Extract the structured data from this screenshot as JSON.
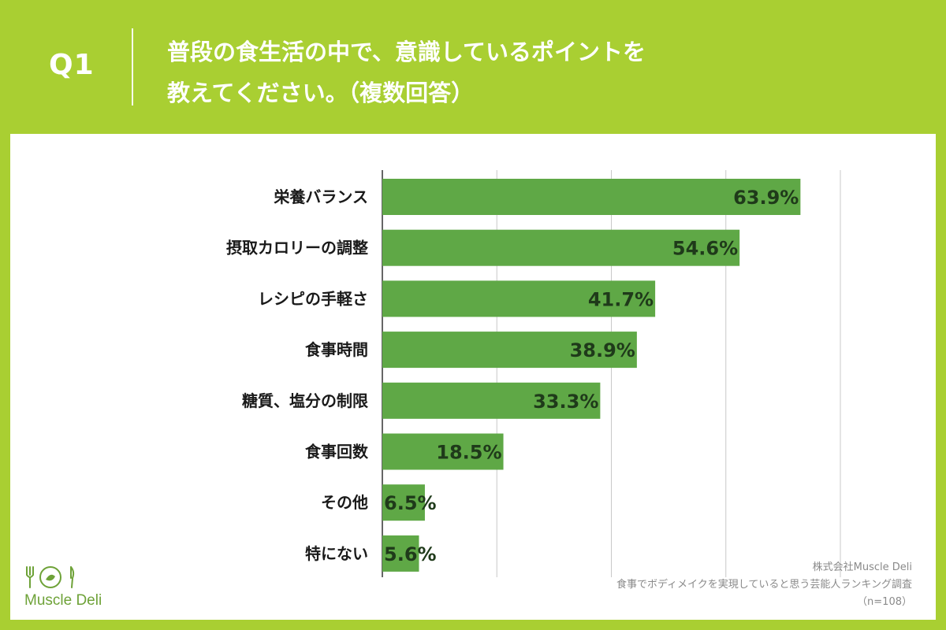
{
  "header": {
    "q_label": "Q1",
    "title_line1": "普段の食生活の中で、意識しているポイントを",
    "title_line2": "教えてください。（複数回答）"
  },
  "colors": {
    "background": "#a9cf32",
    "bar": "#5fa846",
    "value_label": "#1f3a1a",
    "grid": "#c8c8c8"
  },
  "chart_data": {
    "type": "bar",
    "orientation": "horizontal",
    "categories": [
      "栄養バランス",
      "摂取カロリーの調整",
      "レシピの手軽さ",
      "食事時間",
      "糖質、塩分の制限",
      "食事回数",
      "その他",
      "特にない"
    ],
    "values": [
      63.9,
      54.6,
      41.7,
      38.9,
      33.3,
      18.5,
      6.5,
      5.6
    ],
    "value_labels": [
      "63.9%",
      "54.6%",
      "41.7%",
      "38.9%",
      "33.3%",
      "18.5%",
      "6.5%",
      "5.6%"
    ],
    "xlim": [
      0,
      70
    ],
    "grid": true
  },
  "logo": {
    "text": "Muscle Deli"
  },
  "source": {
    "company": "株式会社Muscle Deli",
    "survey": "食事でボディメイクを実現していると思う芸能人ランキング調査",
    "n": "（n=108）"
  }
}
